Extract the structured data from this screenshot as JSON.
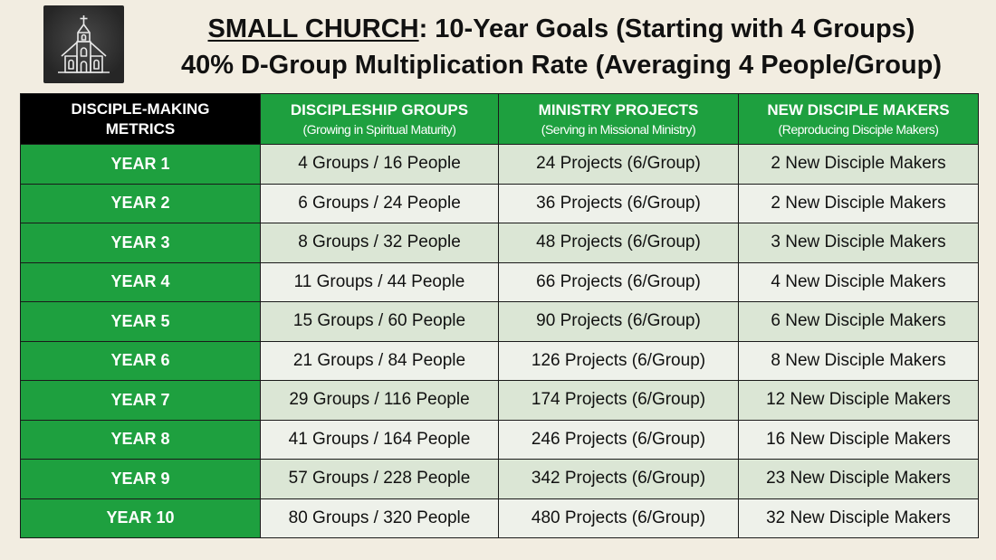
{
  "title": {
    "highlight": "SMALL CHURCH",
    "rest": ": 10-Year Goals (Starting with 4 Groups)",
    "subtitle": "40% D-Group Multiplication Rate (Averaging 4 People/Group)"
  },
  "logo": {
    "icon": "church-icon"
  },
  "table": {
    "headers": [
      {
        "main": "DISCIPLE-MAKING METRICS",
        "sub": ""
      },
      {
        "main": "DISCIPLESHIP GROUPS",
        "sub": "(Growing in Spiritual Maturity)"
      },
      {
        "main": "MINISTRY PROJECTS",
        "sub": "(Serving in Missional Ministry)"
      },
      {
        "main": "NEW DISCIPLE MAKERS",
        "sub": "(Reproducing Disciple Makers)"
      }
    ],
    "rows": [
      {
        "year": "YEAR 1",
        "groups": "4 Groups / 16 People",
        "projects": "24 Projects (6/Group)",
        "makers": "2 New Disciple Makers"
      },
      {
        "year": "YEAR 2",
        "groups": "6 Groups / 24 People",
        "projects": "36 Projects (6/Group)",
        "makers": "2 New Disciple Makers"
      },
      {
        "year": "YEAR 3",
        "groups": "8 Groups / 32 People",
        "projects": "48 Projects (6/Group)",
        "makers": "3 New Disciple Makers"
      },
      {
        "year": "YEAR 4",
        "groups": "11 Groups / 44 People",
        "projects": "66 Projects (6/Group)",
        "makers": "4 New Disciple Makers"
      },
      {
        "year": "YEAR 5",
        "groups": "15 Groups / 60 People",
        "projects": "90 Projects (6/Group)",
        "makers": "6 New Disciple Makers"
      },
      {
        "year": "YEAR 6",
        "groups": "21 Groups / 84 People",
        "projects": "126 Projects (6/Group)",
        "makers": "8 New Disciple Makers"
      },
      {
        "year": "YEAR 7",
        "groups": "29 Groups / 116 People",
        "projects": "174 Projects (6/Group)",
        "makers": "12 New Disciple Makers"
      },
      {
        "year": "YEAR 8",
        "groups": "41 Groups / 164 People",
        "projects": "246 Projects (6/Group)",
        "makers": "16 New Disciple Makers"
      },
      {
        "year": "YEAR 9",
        "groups": "57 Groups / 228 People",
        "projects": "342 Projects (6/Group)",
        "makers": "23 New Disciple Makers"
      },
      {
        "year": "YEAR 10",
        "groups": "80 Groups / 320 People",
        "projects": "480 Projects (6/Group)",
        "makers": "32 New Disciple Makers"
      }
    ]
  },
  "colors": {
    "background": "#f2ede1",
    "green": "#1ea03f",
    "header_black": "#000000",
    "row_odd": "#dbe6d5",
    "row_even": "#eef1ea"
  }
}
